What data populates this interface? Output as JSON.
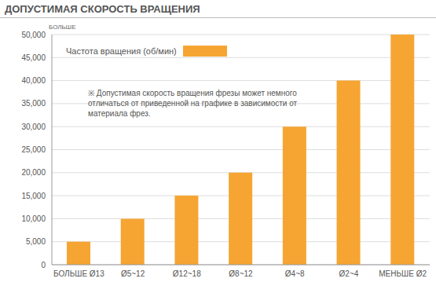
{
  "chart_data": {
    "type": "bar",
    "title": "ДОПУСТИМАЯ СКОРОСТЬ ВРАЩЕНИЯ",
    "ylabel": "БОЛЬШЕ",
    "annotation": "※ Допустимая скорость вращения фрезы может немного отличаться от приведенной на графике в зависимости от материала фрез.",
    "categories": [
      "БОЛЬШЕ Ø13",
      "Ø5~12",
      "Ø12~18",
      "Ø8~12",
      "Ø4~8",
      "Ø2~4",
      "МЕНЬШЕ Ø2"
    ],
    "series": [
      {
        "name": "Частота вращения (об/мин)",
        "color": "#f6a533",
        "values": [
          5000,
          10000,
          15000,
          20000,
          30000,
          40000,
          50000
        ]
      }
    ],
    "ylim": [
      0,
      50000
    ],
    "yticks": [
      0,
      {
        "value": 5000,
        "label": "5,000"
      },
      {
        "value": 10000,
        "label": "10,000"
      },
      {
        "value": 15000,
        "label": "15,000"
      },
      {
        "value": 20000,
        "label": "20,000"
      },
      {
        "value": 25000,
        "label": "25,000"
      },
      {
        "value": 30000,
        "label": "30,000"
      },
      {
        "value": 35000,
        "label": "35,000"
      },
      {
        "value": 40000,
        "label": "40,000"
      },
      {
        "value": 45000,
        "label": "45,000"
      },
      {
        "value": 50000,
        "label": "50,000"
      }
    ],
    "grid": true,
    "legend": "upper left"
  }
}
